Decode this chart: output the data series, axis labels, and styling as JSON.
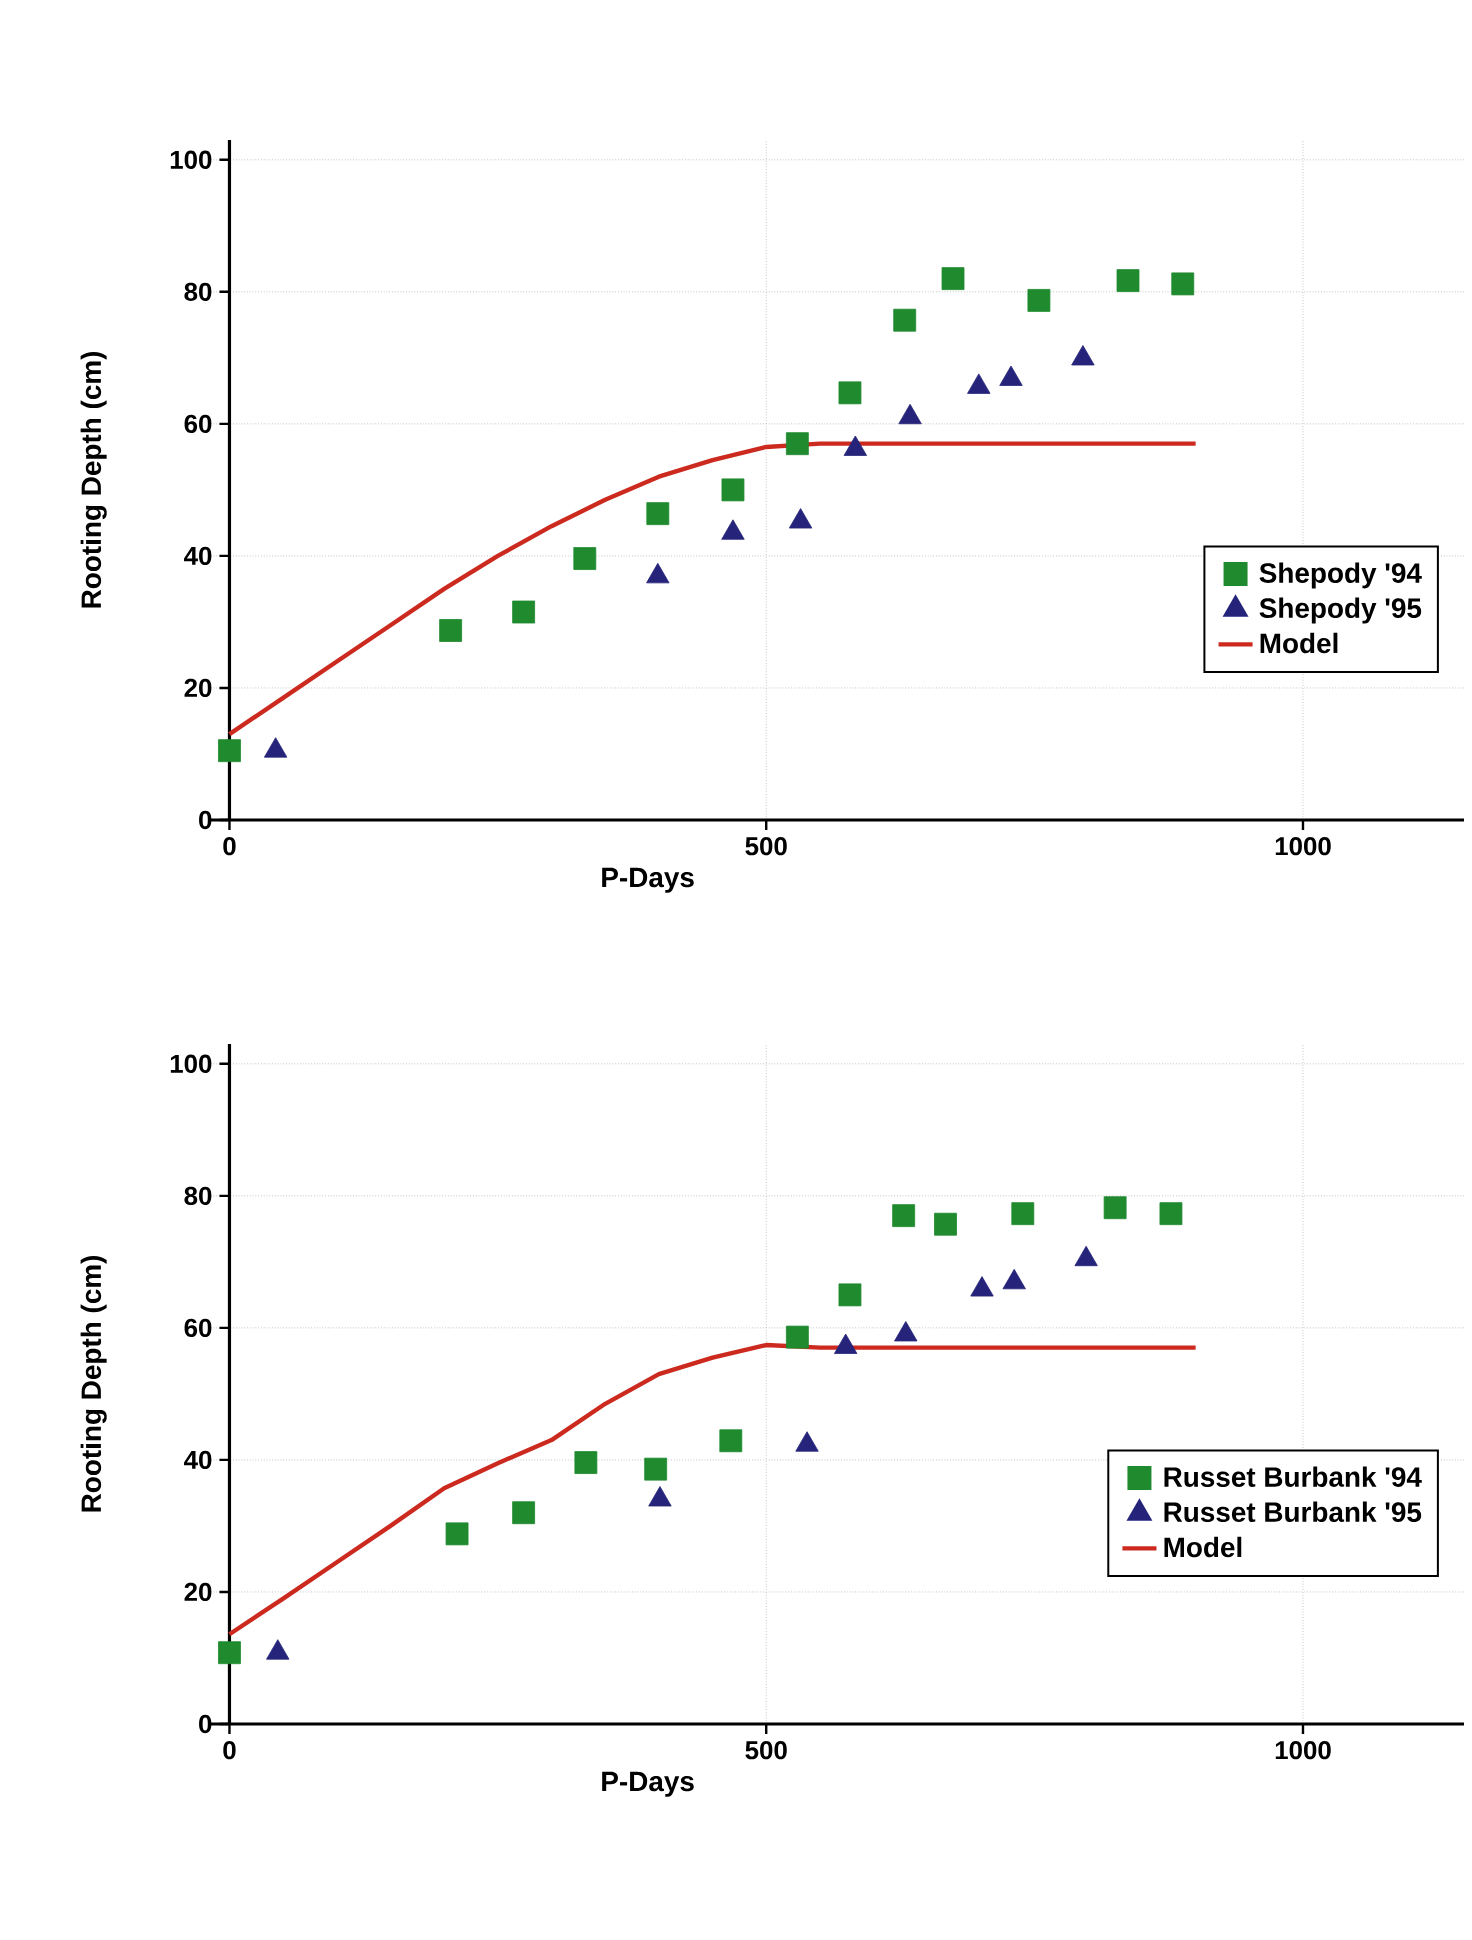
{
  "chart_data": [
    {
      "type": "scatter",
      "xlabel": "P-Days",
      "ylabel": "Rooting Depth (cm)",
      "xlim": [
        -20,
        1150
      ],
      "ylim": [
        0,
        103
      ],
      "xticks": [
        0,
        500,
        1000
      ],
      "yticks": [
        0,
        20,
        40,
        60,
        80,
        100
      ],
      "grid": true,
      "legend": "right",
      "series": [
        {
          "name": "Shepody '94",
          "marker": "square",
          "color": "#1f8a2e",
          "x": [
            0,
            206,
            274,
            331,
            399,
            469,
            529,
            578,
            629,
            674,
            754,
            837,
            888
          ],
          "values": [
            10.5,
            28.7,
            31.5,
            39.6,
            46.4,
            50,
            57,
            64.7,
            75.7,
            82,
            78.7,
            81.7,
            81.2
          ]
        },
        {
          "name": "Shepody '95",
          "marker": "triangle",
          "color": "#26247a",
          "x": [
            43,
            399,
            469,
            532,
            583,
            634,
            698,
            728,
            795
          ],
          "values": [
            10.5,
            36.9,
            43.5,
            45.2,
            56.2,
            61,
            65.6,
            66.8,
            69.9
          ]
        },
        {
          "name": "Model",
          "type": "line",
          "marker": "none",
          "line_style": "solid",
          "color": "#cc2a1f",
          "x": [
            0,
            50,
            100,
            150,
            200,
            250,
            300,
            350,
            400,
            450,
            500,
            550,
            600,
            700,
            800,
            900
          ],
          "values": [
            13,
            18.5,
            24,
            29.5,
            35,
            40,
            44.5,
            48.5,
            52,
            54.5,
            56.5,
            57,
            57,
            57,
            57,
            57
          ]
        }
      ]
    },
    {
      "type": "scatter",
      "xlabel": "P-Days",
      "ylabel": "Rooting Depth (cm)",
      "xlim": [
        -20,
        1150
      ],
      "ylim": [
        0,
        103
      ],
      "xticks": [
        0,
        500,
        1000
      ],
      "yticks": [
        0,
        20,
        40,
        60,
        80,
        100
      ],
      "grid": true,
      "legend": "right",
      "series": [
        {
          "name": "Russet Burbank '94",
          "marker": "square",
          "color": "#1f8a2e",
          "x": [
            0,
            212,
            274,
            332,
            397,
            467,
            529,
            578,
            628,
            667,
            739,
            825,
            877
          ],
          "values": [
            10.8,
            28.8,
            32,
            39.6,
            38.6,
            42.9,
            58.6,
            65,
            77,
            75.7,
            77.3,
            78.2,
            77.3
          ]
        },
        {
          "name": "Russet Burbank '95",
          "marker": "triangle",
          "color": "#26247a",
          "x": [
            45,
            401,
            538,
            574,
            630,
            701,
            731,
            798
          ],
          "values": [
            10.8,
            34,
            42.3,
            57.1,
            59,
            65.8,
            66.9,
            70.4
          ]
        },
        {
          "name": "Model",
          "type": "line",
          "marker": "none",
          "line_style": "solid",
          "color": "#cc2a1f",
          "x": [
            0,
            50,
            100,
            150,
            200,
            250,
            300,
            350,
            400,
            450,
            500,
            550,
            600,
            700,
            800,
            900
          ],
          "values": [
            13.6,
            19,
            24.5,
            30,
            35.7,
            39.5,
            43,
            48.5,
            53,
            55.5,
            57.4,
            57,
            57,
            57,
            57,
            57
          ]
        }
      ]
    }
  ]
}
